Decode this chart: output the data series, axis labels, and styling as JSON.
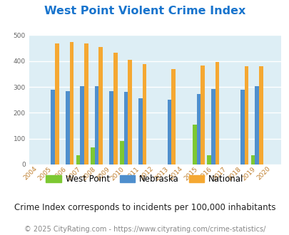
{
  "title": "West Point Violent Crime Index",
  "title_color": "#1874cd",
  "subtitle": "Crime Index corresponds to incidents per 100,000 inhabitants",
  "footer": "© 2025 CityRating.com - https://www.cityrating.com/crime-statistics/",
  "years": [
    2004,
    2005,
    2006,
    2007,
    2008,
    2009,
    2010,
    2011,
    2012,
    2013,
    2014,
    2015,
    2016,
    2017,
    2018,
    2019,
    2020
  ],
  "west_point": [
    0,
    0,
    0,
    35,
    65,
    0,
    90,
    0,
    0,
    0,
    0,
    155,
    35,
    0,
    0,
    35,
    0
  ],
  "nebraska": [
    0,
    288,
    283,
    303,
    303,
    283,
    280,
    257,
    0,
    252,
    0,
    273,
    292,
    0,
    288,
    303,
    0
  ],
  "national": [
    0,
    469,
    473,
    467,
    455,
    432,
    405,
    388,
    0,
    368,
    0,
    383,
    398,
    0,
    379,
    379,
    0
  ],
  "bar_width": 0.28,
  "ylim": [
    0,
    500
  ],
  "yticks": [
    0,
    100,
    200,
    300,
    400,
    500
  ],
  "bg_color": "#ddeef5",
  "fig_bg": "#ffffff",
  "color_wp": "#7dc832",
  "color_ne": "#4f8fcd",
  "color_nat": "#f5a832",
  "grid_color": "#ffffff",
  "legend_labels": [
    "West Point",
    "Nebraska",
    "National"
  ],
  "tick_color": "#c08030",
  "tick_fontsize": 6.5,
  "subtitle_fontsize": 8.5,
  "footer_fontsize": 7,
  "title_fontsize": 11.5
}
